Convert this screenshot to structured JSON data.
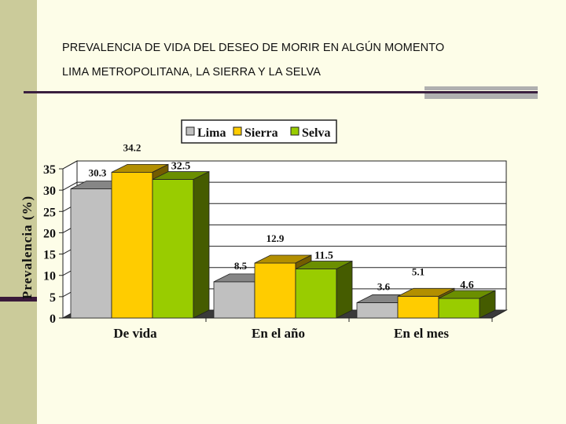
{
  "page": {
    "title_line1": "PREVALENCIA DE VIDA DEL DESEO DE MORIR EN ALGÚN MOMENTO",
    "title_line2": "LIMA METROPOLITANA, LA SIERRA Y LA SELVA"
  },
  "chart_data": {
    "type": "bar",
    "three_d": true,
    "categories": [
      "De vida",
      "En el año",
      "En el mes"
    ],
    "series": [
      {
        "name": "Lima",
        "values": [
          30.3,
          8.5,
          3.6
        ],
        "color": "#c0c0c0",
        "labels": [
          "30.3",
          "8.5",
          "3.6"
        ]
      },
      {
        "name": "Sierra",
        "values": [
          34.2,
          12.9,
          5.1
        ],
        "color": "#ffcc00",
        "labels": [
          "34.2",
          "12.9",
          "5.1"
        ]
      },
      {
        "name": "Selva",
        "values": [
          32.5,
          11.5,
          4.6
        ],
        "color": "#99cc00",
        "labels": [
          "32.5",
          "11.5",
          "4.6"
        ]
      }
    ],
    "ylabel": "Prevalencia (%)",
    "xlabel": "",
    "ylim": [
      0,
      35
    ],
    "yticks": [
      "0",
      "5",
      "10",
      "15",
      "20",
      "25",
      "30",
      "35"
    ],
    "grid": true,
    "legend": "top"
  }
}
